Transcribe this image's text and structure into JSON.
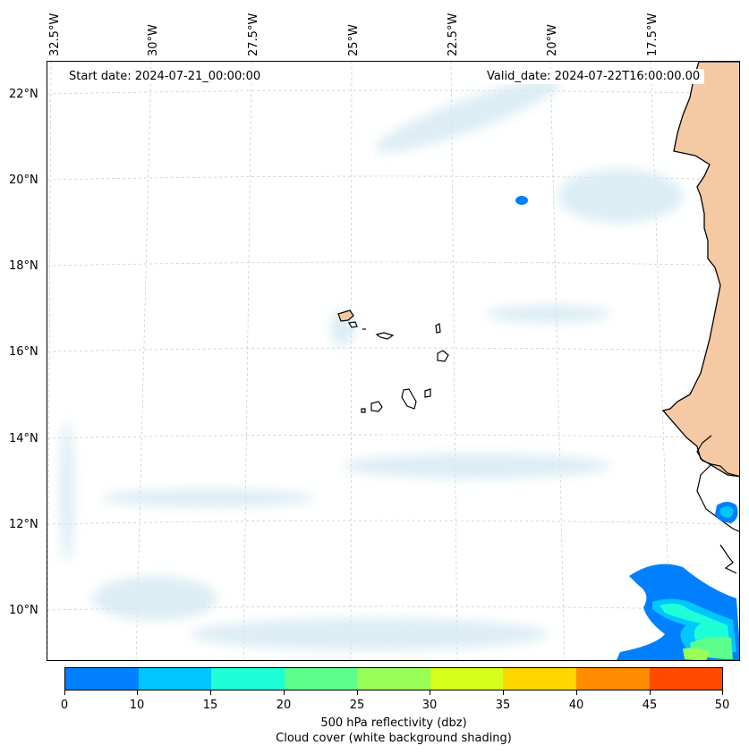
{
  "header": {
    "start_date": "Start date: 2024-07-21_00:00:00",
    "valid_date": "Valid_date: 2024-07-22T16:00:00.00"
  },
  "map": {
    "longitude_labels": [
      "32.5°W",
      "30°W",
      "27.5°W",
      "25°W",
      "22.5°W",
      "20°W",
      "17.5°W"
    ],
    "latitude_labels": [
      "22°N",
      "20°N",
      "18°N",
      "16°N",
      "14°N",
      "12°N",
      "10°N"
    ],
    "colors": {
      "coastline": "#000000",
      "land": "#f4c9a4",
      "cloud": "#d6eaf2",
      "gridline": "#bbbbbb"
    },
    "features": [
      "Cape Verde islands",
      "West African coastline",
      "Reflectivity echoes"
    ]
  },
  "colorbar": {
    "tick_labels": [
      "0",
      "10",
      "15",
      "20",
      "25",
      "30",
      "35",
      "40",
      "45",
      "50"
    ],
    "colors": [
      "#0080ff",
      "#00c8ff",
      "#1effd8",
      "#5cff8c",
      "#97ff58",
      "#d6ff1e",
      "#ffd700",
      "#ff8c00",
      "#ff4a00"
    ],
    "title_line1": "500 hPa reflectivity (dbz)",
    "title_line2": "Cloud cover (white background shading)"
  }
}
